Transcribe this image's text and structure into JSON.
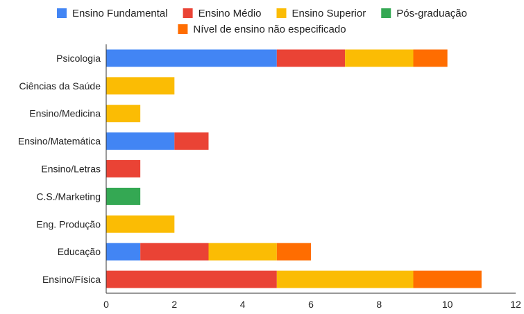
{
  "chart_data": {
    "type": "bar",
    "orientation": "horizontal",
    "stacked": true,
    "title": "",
    "xlabel": "",
    "ylabel": "",
    "xlim": [
      0,
      12
    ],
    "x_ticks": [
      0,
      2,
      4,
      6,
      8,
      10,
      12
    ],
    "grid": false,
    "legend_position": "top",
    "categories": [
      "Psicologia",
      "Ciências da Saúde",
      "Ensino/Medicina",
      "Ensino/Matemática",
      "Ensino/Letras",
      "C.S./Marketing",
      "Eng. Produção",
      "Educação",
      "Ensino/Física"
    ],
    "series": [
      {
        "name": "Ensino Fundamental",
        "color": "#4285f4",
        "values": [
          5,
          0,
          0,
          2,
          0,
          0,
          0,
          1,
          0
        ]
      },
      {
        "name": "Ensino Médio",
        "color": "#ea4335",
        "values": [
          2,
          0,
          0,
          1,
          1,
          0,
          0,
          2,
          5
        ]
      },
      {
        "name": "Ensino Superior",
        "color": "#fbbc04",
        "values": [
          2,
          2,
          1,
          0,
          0,
          0,
          2,
          2,
          4
        ]
      },
      {
        "name": "Pós-graduação",
        "color": "#34a853",
        "values": [
          0,
          0,
          0,
          0,
          0,
          1,
          0,
          0,
          0
        ]
      },
      {
        "name": "Nível de ensino não especificado",
        "color": "#ff6d01",
        "values": [
          1,
          0,
          0,
          0,
          0,
          0,
          0,
          1,
          2
        ]
      }
    ]
  }
}
